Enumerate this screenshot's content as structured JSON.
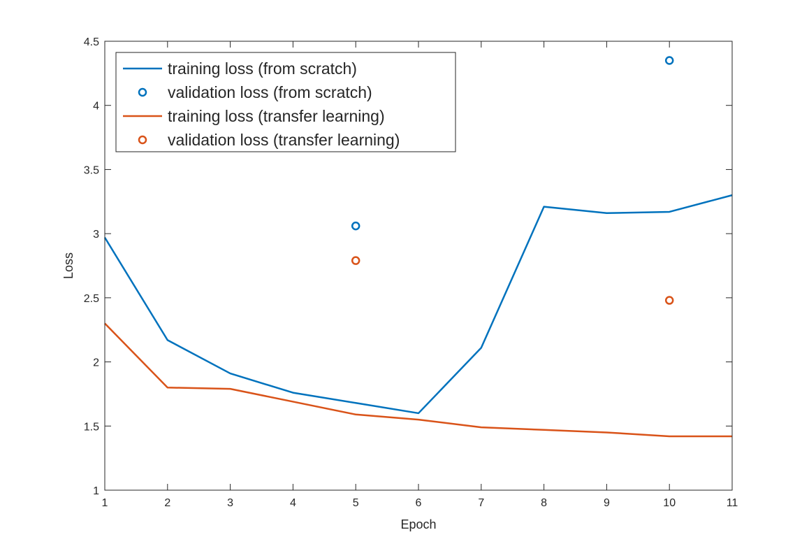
{
  "chart_data": {
    "type": "line",
    "xlabel": "Epoch",
    "ylabel": "Loss",
    "xlim": [
      1,
      11
    ],
    "ylim": [
      1,
      4.5
    ],
    "xticks": [
      1,
      2,
      3,
      4,
      5,
      6,
      7,
      8,
      9,
      10,
      11
    ],
    "yticks": [
      1,
      1.5,
      2,
      2.5,
      3,
      3.5,
      4,
      4.5
    ],
    "xtick_labels": [
      "1",
      "2",
      "3",
      "4",
      "5",
      "6",
      "7",
      "8",
      "9",
      "10",
      "11"
    ],
    "ytick_labels": [
      "1",
      "1.5",
      "2",
      "2.5",
      "3",
      "3.5",
      "4",
      "4.5"
    ],
    "grid": false,
    "legend_position": "top-left",
    "series": [
      {
        "name": "training loss (from scratch)",
        "style": "line",
        "color": "#0072BD",
        "x": [
          1,
          2,
          3,
          4,
          5,
          6,
          7,
          8,
          9,
          10,
          11
        ],
        "y": [
          2.97,
          2.17,
          1.91,
          1.76,
          1.68,
          1.6,
          2.11,
          3.21,
          3.16,
          3.17,
          3.3
        ]
      },
      {
        "name": "validation loss (from scratch)",
        "style": "marker",
        "color": "#0072BD",
        "x": [
          5,
          10
        ],
        "y": [
          3.06,
          4.35
        ]
      },
      {
        "name": "training loss (transfer learning)",
        "style": "line",
        "color": "#D95319",
        "x": [
          1,
          2,
          3,
          4,
          5,
          6,
          7,
          8,
          9,
          10,
          11
        ],
        "y": [
          2.3,
          1.8,
          1.79,
          1.69,
          1.59,
          1.55,
          1.49,
          1.47,
          1.45,
          1.42,
          1.42
        ]
      },
      {
        "name": "validation loss (transfer learning)",
        "style": "marker",
        "color": "#D95319",
        "x": [
          5,
          10
        ],
        "y": [
          2.79,
          2.48
        ]
      }
    ]
  }
}
